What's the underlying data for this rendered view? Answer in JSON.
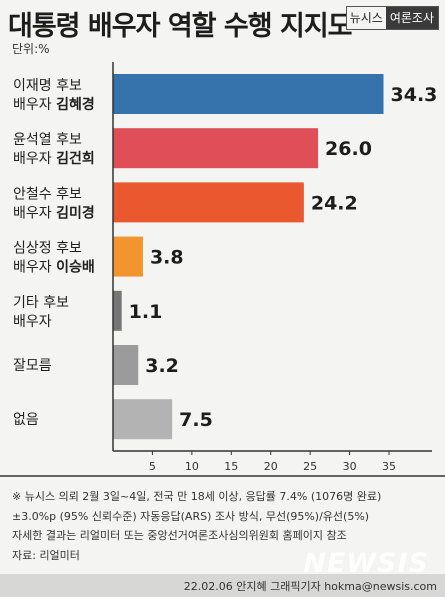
{
  "title": "대통령 배우자 역할 수행 지지도",
  "badge": {
    "publisher": "뉴시스",
    "section": "여론조사"
  },
  "unit": "단위:%",
  "chart_data": {
    "type": "bar",
    "orientation": "horizontal",
    "categories": [
      {
        "line1": "이재명 후보",
        "line2_prefix": "배우자 ",
        "line2_name": "김혜경"
      },
      {
        "line1": "윤석열 후보",
        "line2_prefix": "배우자 ",
        "line2_name": "김건희"
      },
      {
        "line1": "안철수 후보",
        "line2_prefix": "배우자 ",
        "line2_name": "김미경"
      },
      {
        "line1": "심상정 후보",
        "line2_prefix": "배우자 ",
        "line2_name": "이승배"
      },
      {
        "line1": "기타 후보",
        "line2_prefix": "배우자",
        "line2_name": ""
      },
      {
        "line1": "잘모름",
        "line2_prefix": "",
        "line2_name": ""
      },
      {
        "line1": "없음",
        "line2_prefix": "",
        "line2_name": ""
      }
    ],
    "values": [
      34.3,
      26.0,
      24.2,
      3.8,
      1.1,
      3.2,
      7.5
    ],
    "value_labels": [
      "34.3",
      "26.0",
      "24.2",
      "3.8",
      "1.1",
      "3.2",
      "7.5"
    ],
    "colors": [
      "#3673ad",
      "#e04f58",
      "#e9582e",
      "#f2952f",
      "#767676",
      "#9b9b9b",
      "#b3b3b3"
    ],
    "xticks": [
      5,
      10,
      15,
      20,
      25,
      30,
      35
    ],
    "xlim": [
      0,
      38
    ],
    "grid": false
  },
  "notes": [
    "※ 뉴시스 의뢰 2월 3일~4일, 전국 만 18세 이상, 응답률 7.4% (1076명 완료)",
    "±3.0%p (95% 신뢰수준) 자동응답(ARS) 조사 방식, 무선(95%)/유선(5%)",
    "자세한 결과는 리얼미터 또는 중앙선거여론조사심의위원회 홈페이지 참조",
    "자료: 리얼미터"
  ],
  "credit": "22.02.06 안지혜 그래픽기자 hokma@newsis.com",
  "logo": "NEWSIS"
}
